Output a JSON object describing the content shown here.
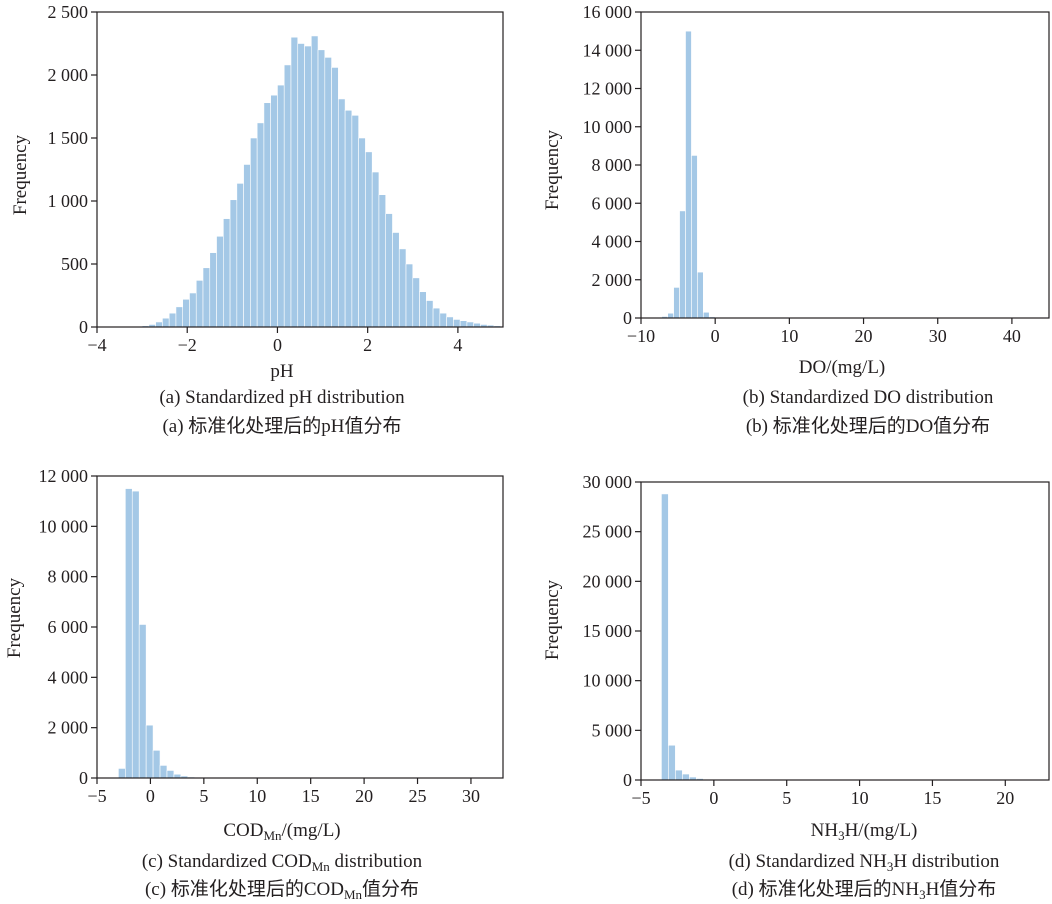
{
  "bar_color": "#a4c8e6",
  "chart_data": [
    {
      "type": "bar",
      "panel": "a",
      "title": "Standardized pH distribution",
      "caption_en": "(a) Standardized pH distribution",
      "caption_zh": "(a) 标准化处理后的pH值分布",
      "xlabel": "pH",
      "ylabel": "Frequency",
      "xlim": [
        -4,
        5
      ],
      "ylim": [
        0,
        2500
      ],
      "xticks": [
        -4,
        -2,
        0,
        2,
        4
      ],
      "xtick_labels": [
        "−4",
        "−2",
        "0",
        "2",
        "4"
      ],
      "yticks": [
        0,
        500,
        1000,
        1500,
        2000,
        2500
      ],
      "ytick_labels": [
        "0",
        "500",
        "1 000",
        "1 500",
        "2 000",
        "2 500"
      ],
      "bin_start": -3.0,
      "bin_width": 0.15,
      "values": [
        10,
        20,
        40,
        70,
        110,
        160,
        220,
        270,
        370,
        470,
        590,
        720,
        860,
        1010,
        1140,
        1290,
        1500,
        1620,
        1780,
        1840,
        1920,
        2080,
        2300,
        2250,
        2230,
        2310,
        2200,
        2140,
        2060,
        1810,
        1720,
        1680,
        1500,
        1390,
        1230,
        1050,
        900,
        750,
        620,
        500,
        390,
        280,
        210,
        150,
        110,
        80,
        60,
        50,
        40,
        30,
        20,
        15,
        10,
        5
      ]
    },
    {
      "type": "bar",
      "panel": "b",
      "title": "Standardized DO distribution",
      "caption_en": "(b) Standardized DO distribution",
      "caption_zh": "(b) 标准化处理后的DO值分布",
      "xlabel": "DO/(mg/L)",
      "ylabel": "Frequency",
      "xlim": [
        -10,
        45
      ],
      "ylim": [
        0,
        16000
      ],
      "xticks": [
        -10,
        0,
        10,
        20,
        30,
        40
      ],
      "xtick_labels": [
        "−10",
        "0",
        "10",
        "20",
        "30",
        "40"
      ],
      "yticks": [
        0,
        2000,
        4000,
        6000,
        8000,
        10000,
        12000,
        14000,
        16000
      ],
      "ytick_labels": [
        "0",
        "2 000",
        "4 000",
        "6 000",
        "8 000",
        "10 000",
        "12 000",
        "14 000",
        "16 000"
      ],
      "bin_start": -7.2,
      "bin_width": 0.8,
      "values": [
        80,
        250,
        1600,
        5600,
        15000,
        8500,
        2400,
        300,
        60
      ]
    },
    {
      "type": "bar",
      "panel": "c",
      "title": "Standardized CODₘₙ distribution",
      "caption_en": "(c) Standardized CODMn distribution",
      "caption_zh": "(c) 标准化处理后的CODMn值分布",
      "xlabel": "CODMn/(mg/L)",
      "ylabel": "Frequency",
      "xlim": [
        -5,
        33
      ],
      "ylim": [
        0,
        12000
      ],
      "xticks": [
        -5,
        0,
        5,
        10,
        15,
        20,
        25,
        30
      ],
      "xtick_labels": [
        "−5",
        "0",
        "5",
        "10",
        "15",
        "20",
        "25",
        "30"
      ],
      "yticks": [
        0,
        2000,
        4000,
        6000,
        8000,
        10000,
        12000
      ],
      "ytick_labels": [
        "0",
        "2 000",
        "4 000",
        "6 000",
        "8 000",
        "10 000",
        "12 000"
      ],
      "bin_start": -3.0,
      "bin_width": 0.65,
      "values": [
        380,
        11500,
        11400,
        6100,
        2100,
        1100,
        500,
        300,
        150,
        80,
        40
      ]
    },
    {
      "type": "bar",
      "panel": "d",
      "title": "Standardized NH3H distribution",
      "caption_en": "(d) Standardized NH3H distribution",
      "caption_zh": "(d) 标准化处理后的NH3H值分布",
      "xlabel": "NH3H/(mg/L)",
      "ylabel": "Frequency",
      "xlim": [
        -5,
        23
      ],
      "ylim": [
        0,
        30000
      ],
      "xticks": [
        -5,
        0,
        5,
        10,
        15,
        20
      ],
      "xtick_labels": [
        "−5",
        "0",
        "5",
        "10",
        "15",
        "20"
      ],
      "yticks": [
        0,
        5000,
        10000,
        15000,
        20000,
        25000,
        30000
      ],
      "ytick_labels": [
        "0",
        "5 000",
        "10 000",
        "15 000",
        "20 000",
        "25 000",
        "30 000"
      ],
      "bin_start": -3.6,
      "bin_width": 0.48,
      "values": [
        28800,
        3500,
        1000,
        600,
        300,
        150,
        80
      ]
    }
  ],
  "caption_parts": {
    "a_en": "(a) Standardized pH distribution",
    "a_zh": "(a) 标准化处理后的pH值分布",
    "b_en": "(b) Standardized DO distribution",
    "b_zh": "(b) 标准化处理后的DO值分布",
    "c_en_pre": "(c) Standardized COD",
    "c_en_sub": "Mn",
    "c_en_post": " distribution",
    "c_zh_pre": "(c) 标准化处理后的COD",
    "c_zh_sub": "Mn",
    "c_zh_post": "值分布",
    "d_en_pre": "(d) Standardized NH",
    "d_en_sub": "3",
    "d_en_post": "H distribution",
    "d_zh_pre": "(d) 标准化处理后的NH",
    "d_zh_sub": "3",
    "d_zh_post": "H值分布"
  },
  "axis_title_parts": {
    "a_x": "pH",
    "b_x": "DO/(mg/L)",
    "c_x_pre": "COD",
    "c_x_sub": "Mn",
    "c_x_post": "/(mg/L)",
    "d_x_pre": "NH",
    "d_x_sub": "3",
    "d_x_post": "H/(mg/L)",
    "y": "Frequency"
  }
}
